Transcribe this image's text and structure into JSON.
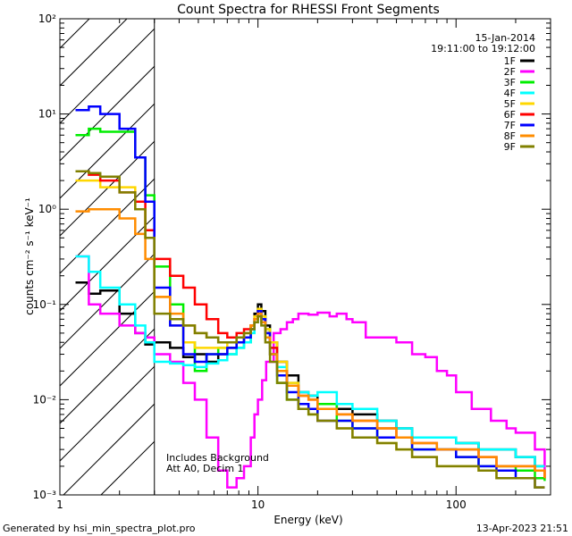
{
  "footer": {
    "generator": "Generated by hsi_min_spectra_plot.pro",
    "timestamp": "13-Apr-2023 21:51"
  },
  "chart_data": {
    "type": "line",
    "title": "Count Spectra for RHESSI Front Segments",
    "xlabel": "Energy (keV)",
    "ylabel": "counts cm⁻² s⁻¹ keV⁻¹",
    "xscale": "log",
    "yscale": "log",
    "xlim": [
      1,
      300
    ],
    "ylim": [
      0.001,
      100
    ],
    "x_ticks": [
      {
        "value": 1,
        "label": "1"
      },
      {
        "value": 10,
        "label": "10"
      },
      {
        "value": 100,
        "label": "100"
      }
    ],
    "y_ticks": [
      {
        "value": 0.001,
        "label": "10⁻³"
      },
      {
        "value": 0.01,
        "label": "10⁻²"
      },
      {
        "value": 0.1,
        "label": "10⁻¹"
      },
      {
        "value": 1,
        "label": "10⁰"
      },
      {
        "value": 10,
        "label": "10¹"
      },
      {
        "value": 100,
        "label": "10²"
      }
    ],
    "legend_info": {
      "date": "15-Jan-2014",
      "time_range": "19:11:00 to 19:12:00",
      "placement": "top-right"
    },
    "annotations": [
      "Includes Background",
      "Att A0, Decim 1"
    ],
    "hatched_region": {
      "x_min": 1,
      "x_max": 3
    },
    "series": [
      {
        "name": "1F",
        "color": "#000000",
        "x": [
          1.2,
          1.4,
          1.6,
          2.0,
          2.4,
          2.7,
          3.0,
          3.6,
          4.2,
          4.8,
          5.5,
          6.3,
          7.0,
          7.8,
          8.5,
          9.2,
          9.6,
          10.0,
          10.4,
          10.9,
          11.5,
          12.5,
          14,
          16,
          18,
          20,
          25,
          30,
          40,
          50,
          60,
          80,
          100,
          130,
          160,
          200,
          250,
          280
        ],
        "y": [
          0.17,
          0.13,
          0.14,
          0.08,
          0.05,
          0.038,
          0.04,
          0.035,
          0.028,
          0.03,
          0.025,
          0.03,
          0.035,
          0.04,
          0.045,
          0.06,
          0.08,
          0.1,
          0.085,
          0.06,
          0.04,
          0.025,
          0.018,
          0.012,
          0.011,
          0.009,
          0.008,
          0.007,
          0.006,
          0.005,
          0.004,
          0.004,
          0.0035,
          0.003,
          0.003,
          0.0025,
          0.002,
          0.002
        ]
      },
      {
        "name": "2F",
        "color": "#ff00ff",
        "x": [
          1.2,
          1.4,
          1.6,
          2.0,
          2.4,
          2.7,
          3.0,
          3.6,
          4.2,
          4.8,
          5.5,
          6.3,
          7.0,
          7.8,
          8.5,
          9.2,
          9.6,
          10.0,
          10.5,
          11,
          12,
          13,
          14,
          15,
          16,
          18,
          20,
          23,
          25,
          28,
          30,
          35,
          40,
          50,
          60,
          70,
          80,
          90,
          100,
          120,
          150,
          180,
          200,
          250,
          280
        ],
        "y": [
          0.32,
          0.1,
          0.08,
          0.06,
          0.05,
          0.045,
          0.03,
          0.025,
          0.015,
          0.01,
          0.004,
          0.0018,
          0.0012,
          0.0015,
          0.002,
          0.004,
          0.007,
          0.01,
          0.016,
          0.025,
          0.05,
          0.055,
          0.065,
          0.07,
          0.08,
          0.078,
          0.082,
          0.075,
          0.08,
          0.07,
          0.065,
          0.045,
          0.045,
          0.04,
          0.03,
          0.028,
          0.02,
          0.018,
          0.012,
          0.008,
          0.006,
          0.005,
          0.0045,
          0.003,
          0.0015
        ]
      },
      {
        "name": "3F",
        "color": "#00ee00",
        "x": [
          1.2,
          1.4,
          1.6,
          2.0,
          2.4,
          2.7,
          3.0,
          3.6,
          4.2,
          4.8,
          5.5,
          6.3,
          7.0,
          7.8,
          8.5,
          9.2,
          9.6,
          10.0,
          10.4,
          10.9,
          11.5,
          12.5,
          14,
          16,
          18,
          20,
          25,
          30,
          40,
          50,
          60,
          80,
          100,
          130,
          160,
          200,
          250,
          280
        ],
        "y": [
          6.0,
          7.0,
          6.5,
          6.5,
          3.5,
          1.4,
          0.25,
          0.1,
          0.04,
          0.02,
          0.03,
          0.035,
          0.03,
          0.035,
          0.04,
          0.055,
          0.07,
          0.09,
          0.075,
          0.055,
          0.03,
          0.015,
          0.01,
          0.008,
          0.007,
          0.009,
          0.006,
          0.005,
          0.004,
          0.004,
          0.003,
          0.003,
          0.0025,
          0.002,
          0.002,
          0.0018,
          0.0015,
          0.0014
        ]
      },
      {
        "name": "4F",
        "color": "#00ffff",
        "x": [
          1.2,
          1.4,
          1.6,
          2.0,
          2.4,
          2.7,
          3.0,
          3.6,
          4.2,
          4.8,
          5.5,
          6.3,
          7.0,
          7.8,
          8.5,
          9.2,
          9.6,
          10.0,
          10.4,
          10.9,
          11.5,
          12.5,
          14,
          16,
          18,
          20,
          25,
          30,
          40,
          50,
          60,
          80,
          100,
          130,
          160,
          200,
          250,
          280
        ],
        "y": [
          0.32,
          0.22,
          0.15,
          0.1,
          0.06,
          0.04,
          0.025,
          0.024,
          0.023,
          0.022,
          0.024,
          0.026,
          0.03,
          0.035,
          0.04,
          0.05,
          0.065,
          0.08,
          0.07,
          0.05,
          0.035,
          0.022,
          0.015,
          0.012,
          0.011,
          0.012,
          0.009,
          0.008,
          0.006,
          0.005,
          0.004,
          0.004,
          0.0035,
          0.003,
          0.003,
          0.0025,
          0.002,
          0.002
        ]
      },
      {
        "name": "5F",
        "color": "#ffd700",
        "x": [
          1.2,
          1.4,
          1.6,
          2.0,
          2.4,
          2.7,
          3.0,
          3.6,
          4.2,
          4.8,
          5.5,
          6.3,
          7.0,
          7.8,
          8.5,
          9.2,
          9.6,
          10.0,
          10.4,
          10.9,
          11.5,
          12.5,
          14,
          16,
          18,
          20,
          25,
          30,
          40,
          50,
          60,
          80,
          100,
          130,
          160,
          200,
          250,
          280
        ],
        "y": [
          2.0,
          2.0,
          1.7,
          1.7,
          1.0,
          0.5,
          0.12,
          0.06,
          0.04,
          0.035,
          0.035,
          0.035,
          0.04,
          0.045,
          0.05,
          0.06,
          0.075,
          0.09,
          0.075,
          0.055,
          0.04,
          0.025,
          0.015,
          0.008,
          0.007,
          0.006,
          0.005,
          0.004,
          0.0035,
          0.003,
          0.0025,
          0.002,
          0.002,
          0.0018,
          0.0015,
          0.0015,
          0.0012,
          0.0012
        ]
      },
      {
        "name": "6F",
        "color": "#ff0000",
        "x": [
          1.2,
          1.4,
          1.6,
          2.0,
          2.4,
          2.7,
          3.0,
          3.6,
          4.2,
          4.8,
          5.5,
          6.3,
          7.0,
          7.8,
          8.5,
          9.2,
          9.6,
          10.0,
          10.4,
          10.9,
          11.5,
          12.5,
          14,
          16,
          18,
          20,
          25,
          30,
          40,
          50,
          60,
          80,
          100,
          130,
          160,
          200,
          250,
          280
        ],
        "y": [
          2.5,
          2.3,
          2.0,
          1.5,
          1.2,
          0.6,
          0.3,
          0.2,
          0.15,
          0.1,
          0.07,
          0.05,
          0.045,
          0.05,
          0.055,
          0.06,
          0.07,
          0.085,
          0.07,
          0.05,
          0.035,
          0.02,
          0.014,
          0.011,
          0.01,
          0.008,
          0.007,
          0.006,
          0.005,
          0.004,
          0.0035,
          0.003,
          0.003,
          0.0025,
          0.002,
          0.002,
          0.0018,
          0.0015
        ]
      },
      {
        "name": "7F",
        "color": "#0000ff",
        "x": [
          1.2,
          1.4,
          1.6,
          2.0,
          2.4,
          2.7,
          3.0,
          3.6,
          4.2,
          4.8,
          5.5,
          6.3,
          7.0,
          7.8,
          8.5,
          9.2,
          9.6,
          10.0,
          10.4,
          10.9,
          11.5,
          12.5,
          14,
          16,
          18,
          20,
          25,
          30,
          40,
          50,
          60,
          80,
          100,
          130,
          160,
          200,
          250,
          280
        ],
        "y": [
          11.0,
          12.0,
          10.0,
          7.0,
          3.5,
          1.2,
          0.15,
          0.06,
          0.03,
          0.025,
          0.03,
          0.03,
          0.035,
          0.04,
          0.045,
          0.055,
          0.07,
          0.085,
          0.07,
          0.05,
          0.03,
          0.018,
          0.012,
          0.009,
          0.008,
          0.006,
          0.006,
          0.005,
          0.004,
          0.004,
          0.003,
          0.003,
          0.0025,
          0.002,
          0.0018,
          0.0015,
          0.0012,
          0.0012
        ]
      },
      {
        "name": "8F",
        "color": "#ff8c00",
        "x": [
          1.2,
          1.4,
          1.6,
          2.0,
          2.4,
          2.7,
          3.0,
          3.6,
          4.2,
          4.8,
          5.5,
          6.3,
          7.0,
          7.8,
          8.5,
          9.2,
          9.6,
          10.0,
          10.4,
          10.9,
          11.5,
          12.5,
          14,
          16,
          18,
          20,
          25,
          30,
          40,
          50,
          60,
          80,
          100,
          130,
          160,
          200,
          250,
          280
        ],
        "y": [
          0.95,
          1.0,
          1.0,
          0.8,
          0.55,
          0.3,
          0.12,
          0.08,
          0.06,
          0.05,
          0.045,
          0.04,
          0.04,
          0.045,
          0.05,
          0.06,
          0.07,
          0.08,
          0.065,
          0.045,
          0.03,
          0.02,
          0.014,
          0.011,
          0.01,
          0.008,
          0.007,
          0.006,
          0.005,
          0.004,
          0.0035,
          0.003,
          0.003,
          0.0025,
          0.002,
          0.002,
          0.0018,
          0.0015
        ]
      },
      {
        "name": "9F",
        "color": "#808000",
        "x": [
          1.2,
          1.4,
          1.6,
          2.0,
          2.4,
          2.7,
          3.0,
          3.6,
          4.2,
          4.8,
          5.5,
          6.3,
          7.0,
          7.8,
          8.5,
          9.2,
          9.6,
          10.0,
          10.4,
          10.9,
          11.5,
          12.5,
          14,
          16,
          18,
          20,
          25,
          30,
          40,
          50,
          60,
          80,
          100,
          130,
          160,
          200,
          250,
          280
        ],
        "y": [
          2.5,
          2.4,
          2.2,
          1.5,
          1.0,
          0.5,
          0.08,
          0.07,
          0.06,
          0.05,
          0.045,
          0.04,
          0.04,
          0.045,
          0.05,
          0.055,
          0.065,
          0.075,
          0.06,
          0.04,
          0.025,
          0.015,
          0.01,
          0.008,
          0.007,
          0.006,
          0.005,
          0.004,
          0.0035,
          0.003,
          0.0025,
          0.002,
          0.002,
          0.0018,
          0.0015,
          0.0015,
          0.0012,
          0.0012
        ]
      }
    ]
  }
}
